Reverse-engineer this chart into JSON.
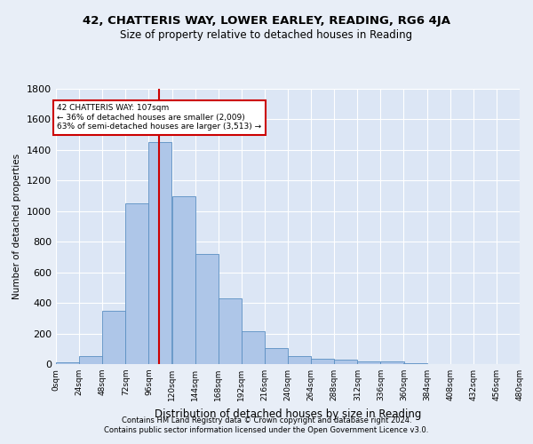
{
  "title1": "42, CHATTERIS WAY, LOWER EARLEY, READING, RG6 4JA",
  "title2": "Size of property relative to detached houses in Reading",
  "xlabel": "Distribution of detached houses by size in Reading",
  "ylabel": "Number of detached properties",
  "footnote1": "Contains HM Land Registry data © Crown copyright and database right 2024.",
  "footnote2": "Contains public sector information licensed under the Open Government Licence v3.0.",
  "annotation_line1": "42 CHATTERIS WAY: 107sqm",
  "annotation_line2": "← 36% of detached houses are smaller (2,009)",
  "annotation_line3": "63% of semi-detached houses are larger (3,513) →",
  "bin_edges": [
    0,
    24,
    48,
    72,
    96,
    120,
    144,
    168,
    192,
    216,
    240,
    264,
    288,
    312,
    336,
    360,
    384,
    408,
    432,
    456,
    480
  ],
  "bar_heights": [
    10,
    50,
    350,
    1050,
    1450,
    1100,
    720,
    430,
    215,
    105,
    50,
    35,
    30,
    20,
    15,
    5,
    0,
    0,
    0,
    0
  ],
  "bar_color": "#aec6e8",
  "bar_edge_color": "#5a8fc2",
  "vline_x": 107,
  "vline_color": "#cc0000",
  "ylim": [
    0,
    1800
  ],
  "yticks": [
    0,
    200,
    400,
    600,
    800,
    1000,
    1200,
    1400,
    1600,
    1800
  ],
  "bg_color": "#e8eef7",
  "plot_bg_color": "#dce6f5",
  "annotation_box_edge": "#cc0000",
  "title1_fontsize": 9.5,
  "title2_fontsize": 8.5,
  "ylabel_fontsize": 7.5,
  "xlabel_fontsize": 8.5,
  "footnote_fontsize": 6.0,
  "ytick_fontsize": 8,
  "xtick_fontsize": 6.5
}
